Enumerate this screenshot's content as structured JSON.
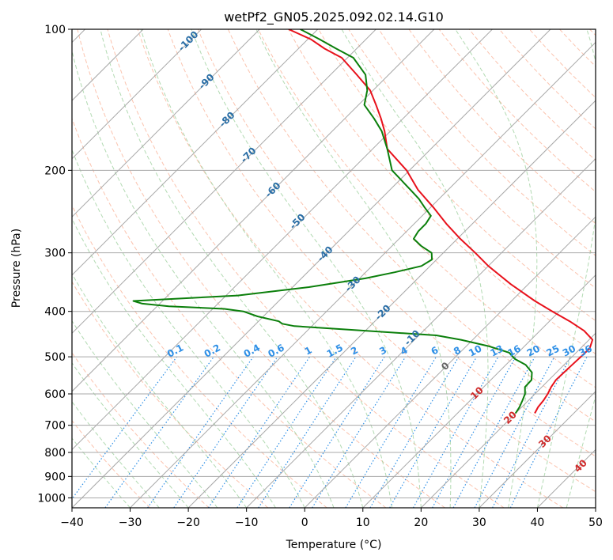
{
  "chart_data": {
    "type": "line",
    "diagram": "skew-T log-P",
    "title": "wetPf2_GN05.2025.092.02.14.G10",
    "xlabel": "Temperature (°C)",
    "ylabel": "Pressure (hPa)",
    "xlim": [
      -40,
      50
    ],
    "ylim": [
      1050,
      100
    ],
    "y_scale": "log",
    "grid": true,
    "x_ticks": [
      -40,
      -30,
      -20,
      -10,
      0,
      10,
      20,
      30,
      40,
      50
    ],
    "y_ticks": [
      100,
      200,
      300,
      400,
      500,
      600,
      700,
      800,
      900,
      1000
    ],
    "isotherm_labels": [
      "-100",
      "-90",
      "-80",
      "-70",
      "-60",
      "-50",
      "-40",
      "-30",
      "-20",
      "-10",
      "0",
      "10",
      "20",
      "30",
      "40"
    ],
    "mixing_ratio_labels": [
      "0.1",
      "0.2",
      "0.4",
      "0.6",
      "1",
      "1.5",
      "2",
      "3",
      "4",
      "6",
      "8",
      "10",
      "13",
      "16",
      "20",
      "25",
      "30",
      "36"
    ],
    "colors": {
      "temperature": "#e8111b",
      "dewpoint": "#0b7f0b",
      "isotherm_label_blue": "#2a6ea6",
      "isotherm_label_red": "#cf2a2a",
      "mixing_ratio": "#2e8fe6",
      "dry_adiabat": "#f9a98b",
      "moist_adiabat": "#9fd19f",
      "grid": "#a8a8a8"
    },
    "series": [
      {
        "x_pressure_hPa": [
          660,
          640,
          620,
          600,
          580,
          560,
          540,
          520,
          500,
          480,
          460,
          440,
          420,
          400,
          380,
          350,
          320,
          300,
          280,
          260,
          240,
          220,
          200,
          180,
          165,
          155,
          145,
          135,
          125,
          115,
          110,
          105,
          100
        ],
        "values": [
          23.3,
          22.8,
          22.6,
          22.2,
          21.6,
          21.2,
          21.3,
          21.4,
          21.5,
          21.6,
          20.6,
          17.6,
          13.5,
          8.8,
          4.0,
          -3.0,
          -10.0,
          -14.5,
          -19.5,
          -24.5,
          -29.5,
          -35.2,
          -40.5,
          -47.5,
          -51.0,
          -53.8,
          -57.0,
          -60.5,
          -65.5,
          -71.0,
          -75.5,
          -79.5,
          -85.0
        ]
      },
      {
        "x_pressure_hPa": [
          660,
          640,
          620,
          600,
          580,
          560,
          540,
          520,
          505,
          490,
          475,
          460,
          450,
          440,
          430,
          425,
          420,
          410,
          400,
          395,
          390,
          388,
          385,
          380,
          370,
          355,
          340,
          330,
          320,
          310,
          300,
          290,
          280,
          270,
          260,
          250,
          240,
          230,
          220,
          200,
          180,
          165,
          155,
          145,
          135,
          125,
          115,
          110,
          105,
          100
        ],
        "values": [
          20.0,
          19.6,
          19.0,
          18.3,
          17.1,
          17.0,
          15.8,
          13.4,
          10.5,
          8.5,
          4.0,
          -2.0,
          -7.0,
          -19.8,
          -33.0,
          -35.5,
          -36.5,
          -41.0,
          -44.3,
          -48.0,
          -58.0,
          -60.0,
          -63.0,
          -65.0,
          -48.0,
          -37.2,
          -29.0,
          -25.0,
          -21.5,
          -20.8,
          -22.0,
          -25.0,
          -27.5,
          -28.0,
          -28.0,
          -28.5,
          -31.0,
          -33.5,
          -36.5,
          -43.0,
          -47.5,
          -51.5,
          -55.0,
          -59.0,
          -61.0,
          -64.0,
          -69.0,
          -73.5,
          -78.0,
          -83.0
        ]
      }
    ]
  }
}
